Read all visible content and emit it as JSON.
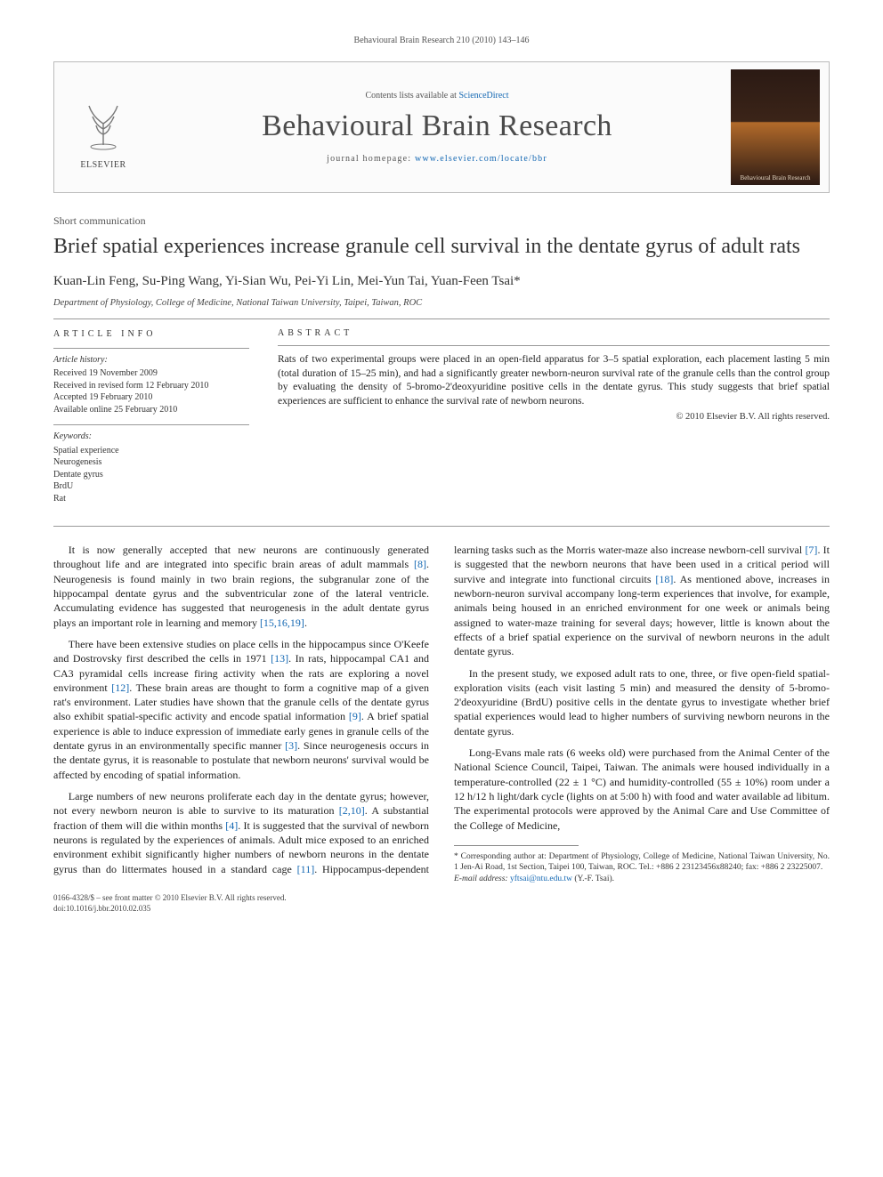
{
  "running_header": "Behavioural Brain Research 210 (2010) 143–146",
  "header": {
    "publisher_name": "ELSEVIER",
    "contents_prefix": "Contents lists available at ",
    "contents_link": "ScienceDirect",
    "journal_name": "Behavioural Brain Research",
    "homepage_prefix": "journal homepage: ",
    "homepage_url": "www.elsevier.com/locate/bbr",
    "cover_caption": "Behavioural Brain Research"
  },
  "article_type": "Short communication",
  "title": "Brief spatial experiences increase granule cell survival in the dentate gyrus of adult rats",
  "authors": "Kuan-Lin Feng, Su-Ping Wang, Yi-Sian Wu, Pei-Yi Lin, Mei-Yun Tai, Yuan-Feen Tsai*",
  "affiliation": "Department of Physiology, College of Medicine, National Taiwan University, Taipei, Taiwan, ROC",
  "info": {
    "heading": "ARTICLE INFO",
    "history_title": "Article history:",
    "history_lines": [
      "Received 19 November 2009",
      "Received in revised form 12 February 2010",
      "Accepted 19 February 2010",
      "Available online 25 February 2010"
    ],
    "keywords_title": "Keywords:",
    "keywords": [
      "Spatial experience",
      "Neurogenesis",
      "Dentate gyrus",
      "BrdU",
      "Rat"
    ]
  },
  "abstract": {
    "heading": "ABSTRACT",
    "text": "Rats of two experimental groups were placed in an open-field apparatus for 3–5 spatial exploration, each placement lasting 5 min (total duration of 15–25 min), and had a significantly greater newborn-neuron survival rate of the granule cells than the control group by evaluating the density of 5-bromo-2'deoxyuridine positive cells in the dentate gyrus. This study suggests that brief spatial experiences are sufficient to enhance the survival rate of newborn neurons.",
    "copyright": "© 2010 Elsevier B.V. All rights reserved."
  },
  "body": {
    "p1": "It is now generally accepted that new neurons are continuously generated throughout life and are integrated into specific brain areas of adult mammals [8]. Neurogenesis is found mainly in two brain regions, the subgranular zone of the hippocampal dentate gyrus and the subventricular zone of the lateral ventricle. Accumulating evidence has suggested that neurogenesis in the adult dentate gyrus plays an important role in learning and memory [15,16,19].",
    "p2": "There have been extensive studies on place cells in the hippocampus since O'Keefe and Dostrovsky first described the cells in 1971 [13]. In rats, hippocampal CA1 and CA3 pyramidal cells increase firing activity when the rats are exploring a novel environment [12]. These brain areas are thought to form a cognitive map of a given rat's environment. Later studies have shown that the granule cells of the dentate gyrus also exhibit spatial-specific activity and encode spatial information [9]. A brief spatial experience is able to induce expression of immediate early genes in granule cells of the dentate gyrus in an environmentally specific manner [3]. Since neurogenesis occurs in the dentate gyrus, it is reasonable to postulate that newborn neurons' survival would be affected by encoding of spatial information.",
    "p3": "Large numbers of new neurons proliferate each day in the dentate gyrus; however, not every newborn neuron is able to survive to its maturation [2,10]. A substantial fraction of them will die within months [4]. It is suggested that the survival of newborn neurons is regulated by the experiences of animals. Adult mice exposed to an enriched environment exhibit significantly higher numbers of newborn neurons in the dentate gyrus than do littermates housed in a standard cage [11]. Hippocampus-dependent learning tasks such as the Morris water-maze also increase newborn-cell survival [7]. It is suggested that the newborn neurons that have been used in a critical period will survive and integrate into functional circuits [18]. As mentioned above, increases in newborn-neuron survival accompany long-term experiences that involve, for example, animals being housed in an enriched environment for one week or animals being assigned to water-maze training for several days; however, little is known about the effects of a brief spatial experience on the survival of newborn neurons in the adult dentate gyrus.",
    "p4": "In the present study, we exposed adult rats to one, three, or five open-field spatial-exploration visits (each visit lasting 5 min) and measured the density of 5-bromo-2'deoxyuridine (BrdU) positive cells in the dentate gyrus to investigate whether brief spatial experiences would lead to higher numbers of surviving newborn neurons in the dentate gyrus.",
    "p5": "Long-Evans male rats (6 weeks old) were purchased from the Animal Center of the National Science Council, Taipei, Taiwan. The animals were housed individually in a temperature-controlled (22 ± 1 °C) and humidity-controlled (55 ± 10%) room under a 12 h/12 h light/dark cycle (lights on at 5:00 h) with food and water available ad libitum. The experimental protocols were approved by the Animal Care and Use Committee of the College of Medicine,"
  },
  "footnote": {
    "corr_label": "* Corresponding author at: Department of Physiology, College of Medicine, National Taiwan University, No. 1 Jen-Ai Road, 1st Section, Taipei 100, Taiwan, ROC. Tel.: +886 2 23123456x88240; fax: +886 2 23225007.",
    "email_label": "E-mail address:",
    "email": "yftsai@ntu.edu.tw",
    "email_suffix": "(Y.-F. Tsai)."
  },
  "bottom_meta": {
    "line1": "0166-4328/$ – see front matter © 2010 Elsevier B.V. All rights reserved.",
    "line2": "doi:10.1016/j.bbr.2010.02.035"
  },
  "colors": {
    "link": "#1468b3",
    "text": "#222222",
    "muted": "#555555",
    "border": "#bbbbbb",
    "journal_name": "#4a4a4a"
  }
}
